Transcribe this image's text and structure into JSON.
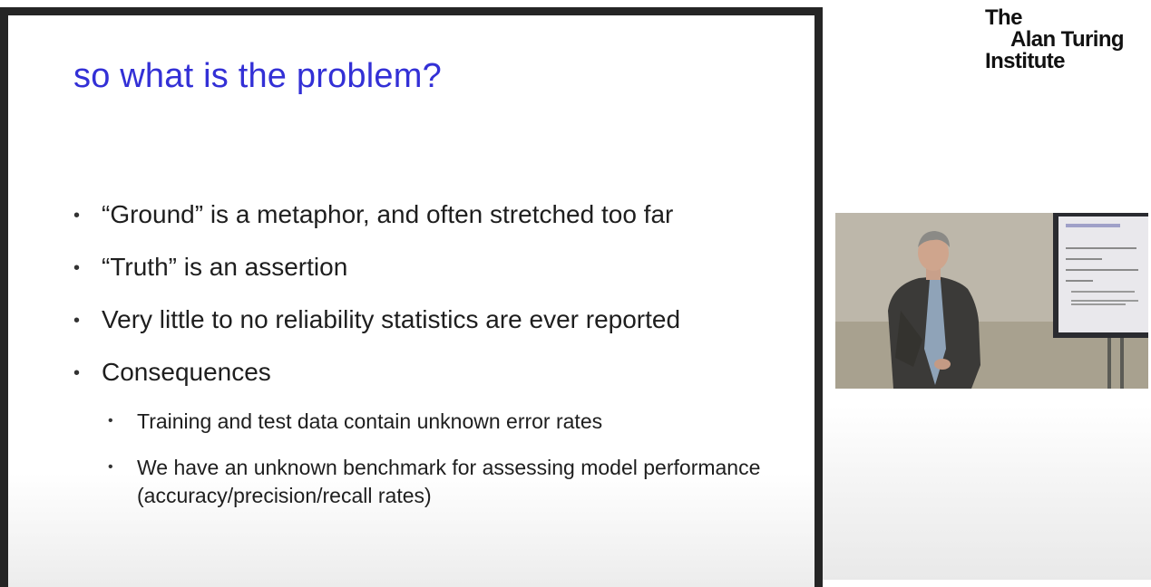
{
  "slide": {
    "title": "so what is the problem?",
    "bullets": [
      "“Ground” is a metaphor, and often stretched too far",
      "“Truth” is an assertion",
      "Very little to no reliability statistics are ever reported",
      "Consequences"
    ],
    "subbullets": [
      "Training and test data contain unknown error rates",
      "We have an unknown benchmark for assessing model performance (accuracy/precision/recall rates)"
    ],
    "bullet_glyph": "•",
    "title_color": "#3330d6"
  },
  "logo": {
    "lines": [
      "The",
      "Alan Turing",
      "Institute"
    ]
  },
  "video": {
    "icon": "presenter-video-feed"
  }
}
